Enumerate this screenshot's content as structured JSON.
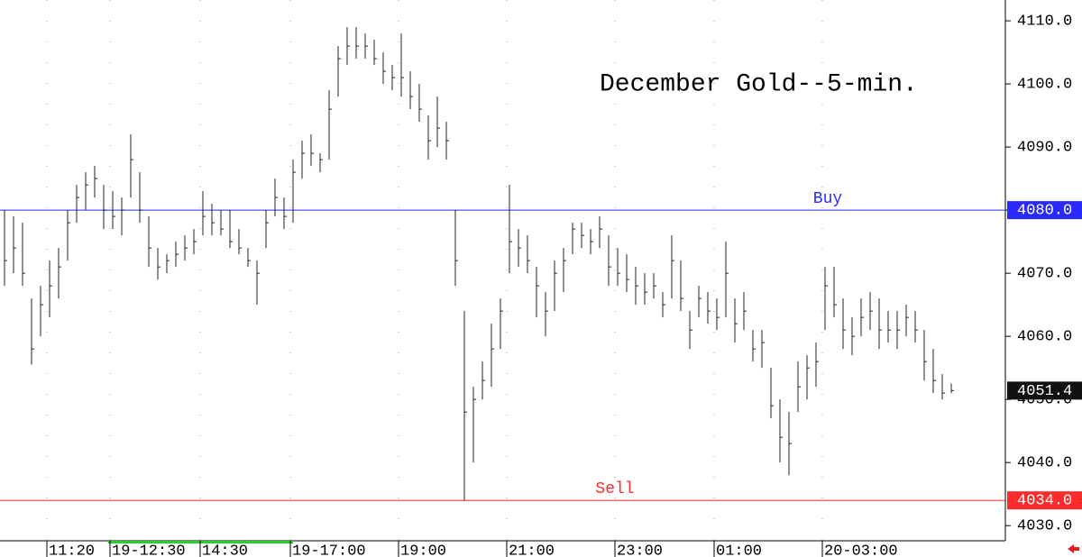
{
  "chart_data": {
    "type": "ohlc",
    "title": "December Gold--5-min.",
    "color": "#222222",
    "categories": [
      null,
      null,
      null,
      null,
      null,
      "11:20",
      null,
      null,
      null,
      null,
      null,
      null,
      "19-12:30",
      null,
      null,
      null,
      null,
      null,
      null,
      null,
      null,
      null,
      "14:30",
      null,
      null,
      null,
      null,
      null,
      null,
      null,
      null,
      null,
      "19-17:00",
      null,
      null,
      null,
      null,
      null,
      null,
      null,
      null,
      null,
      null,
      null,
      "19:00",
      null,
      null,
      null,
      null,
      null,
      null,
      null,
      null,
      null,
      null,
      null,
      "21:00",
      null,
      null,
      null,
      null,
      null,
      null,
      null,
      null,
      null,
      null,
      null,
      "23:00",
      null,
      null,
      null,
      null,
      null,
      null,
      null,
      null,
      null,
      null,
      "01:00",
      null,
      null,
      null,
      null,
      null,
      null,
      null,
      null,
      null,
      null,
      null,
      "20-03:00",
      null,
      null,
      null,
      null,
      null,
      null,
      null,
      null,
      null,
      null,
      null,
      null,
      null,
      null
    ],
    "high": [
      4080,
      4079,
      4078,
      4066,
      4068,
      4072,
      4074,
      4080,
      4084,
      4086,
      4087,
      4084,
      4083,
      4082,
      4092,
      4086,
      4079,
      4074,
      4073,
      4075,
      4076,
      4077,
      4083,
      4081,
      4080,
      4080,
      4077,
      4074,
      4072,
      4080,
      4085,
      4082,
      4088,
      4091,
      4092,
      4089,
      4099,
      4106,
      4109,
      4109,
      4108,
      4107,
      4105,
      4103,
      4108,
      4102,
      4100,
      4095,
      4098,
      4094,
      4080,
      4064,
      4052,
      4056,
      4062,
      4066,
      4084,
      4077,
      4076,
      4071,
      4067,
      4072,
      4074,
      4078,
      4078,
      4077,
      4079,
      4076,
      4074,
      4073,
      4071,
      4070,
      4070,
      4067,
      4076,
      4072,
      4064,
      4068,
      4067,
      4066,
      4075,
      4066,
      4067,
      4061,
      4061,
      4055,
      4050,
      4048,
      4056,
      4057,
      4059,
      4071,
      4071,
      4066,
      4063,
      4066,
      4067,
      4066,
      4064,
      4064,
      4065,
      4064,
      4061,
      4058,
      4054,
      4052.5
    ],
    "low": [
      4068,
      4070,
      4068,
      4055.5,
      4060,
      4063,
      4066,
      4072,
      4078,
      4080,
      4082,
      4077,
      4077,
      4076,
      4082,
      4078,
      4071,
      4069,
      4070,
      4071,
      4072,
      4073,
      4076,
      4076,
      4076,
      4074,
      4073,
      4071,
      4065,
      4074,
      4079,
      4077,
      4078,
      4085,
      4087,
      4086,
      4088,
      4098,
      4103,
      4104,
      4104,
      4103,
      4100,
      4099,
      4098,
      4096,
      4094,
      4088,
      4090,
      4088,
      4068,
      4034,
      4040,
      4050,
      4052,
      4058,
      4070,
      4071,
      4070,
      4063,
      4060,
      4064,
      4067,
      4073,
      4074,
      4073,
      4074,
      4068,
      4068,
      4067,
      4065,
      4065,
      4066,
      4063,
      4066,
      4064,
      4058,
      4063,
      4062,
      4061,
      4063,
      4059,
      4061,
      4056,
      4055,
      4047,
      4040,
      4038,
      4048,
      4050,
      4052,
      4061,
      4063,
      4058,
      4057,
      4060,
      4061,
      4058,
      4059,
      4058,
      4060,
      4059,
      4053,
      4051,
      4050,
      4051
    ],
    "close": [
      4072,
      4074,
      4070,
      4058,
      4065,
      4068,
      4071,
      4078,
      4082,
      4084,
      4085,
      4080,
      4079,
      4080,
      4088,
      4080,
      4074,
      4071,
      4072,
      4073,
      4074,
      4075,
      4079,
      4078,
      4077,
      4075,
      4074,
      4072,
      4070,
      4078,
      4082,
      4079,
      4086,
      4089,
      4089,
      4088,
      4096,
      4104,
      4106,
      4106,
      4106,
      4104,
      4102,
      4101,
      4101,
      4098,
      4096,
      4091,
      4093,
      4091,
      4072,
      4048,
      4050,
      4053,
      4058,
      4064,
      4075,
      4074,
      4072,
      4068,
      4064,
      4070,
      4072,
      4077,
      4076,
      4075,
      4077,
      4071,
      4070,
      4069,
      4068,
      4067,
      4068,
      4065,
      4072,
      4066,
      4061,
      4066,
      4064,
      4063,
      4070,
      4062,
      4064,
      4058,
      4059,
      4049,
      4044,
      4043,
      4052,
      4055,
      4056,
      4068,
      4065,
      4061,
      4060,
      4063,
      4064,
      4061,
      4061,
      4061,
      4063,
      4061,
      4056,
      4053,
      4051,
      4051.4
    ],
    "ylim": [
      4027.6,
      4113.3
    ],
    "yticks": [
      {
        "value": 4030,
        "label": "4030.0"
      },
      {
        "value": 4040,
        "label": "4040.0"
      },
      {
        "value": 4050,
        "label": "4050.0"
      },
      {
        "value": 4060,
        "label": "4060.0"
      },
      {
        "value": 4070,
        "label": "4070.0"
      },
      {
        "value": 4080,
        "label": "4080.0"
      },
      {
        "value": 4090,
        "label": "4090.0"
      },
      {
        "value": 4100,
        "label": "4100.0"
      },
      {
        "value": 4110,
        "label": "4110.0"
      }
    ],
    "hlines": [
      {
        "value": 4080,
        "label": "Buy",
        "value_label": "4080.0",
        "color": "#2a2aff"
      },
      {
        "value": 4034,
        "label": "Sell",
        "value_label": "4034.0",
        "color": "#ff2a2a"
      }
    ],
    "last": {
      "value": 4051.4
    }
  }
}
